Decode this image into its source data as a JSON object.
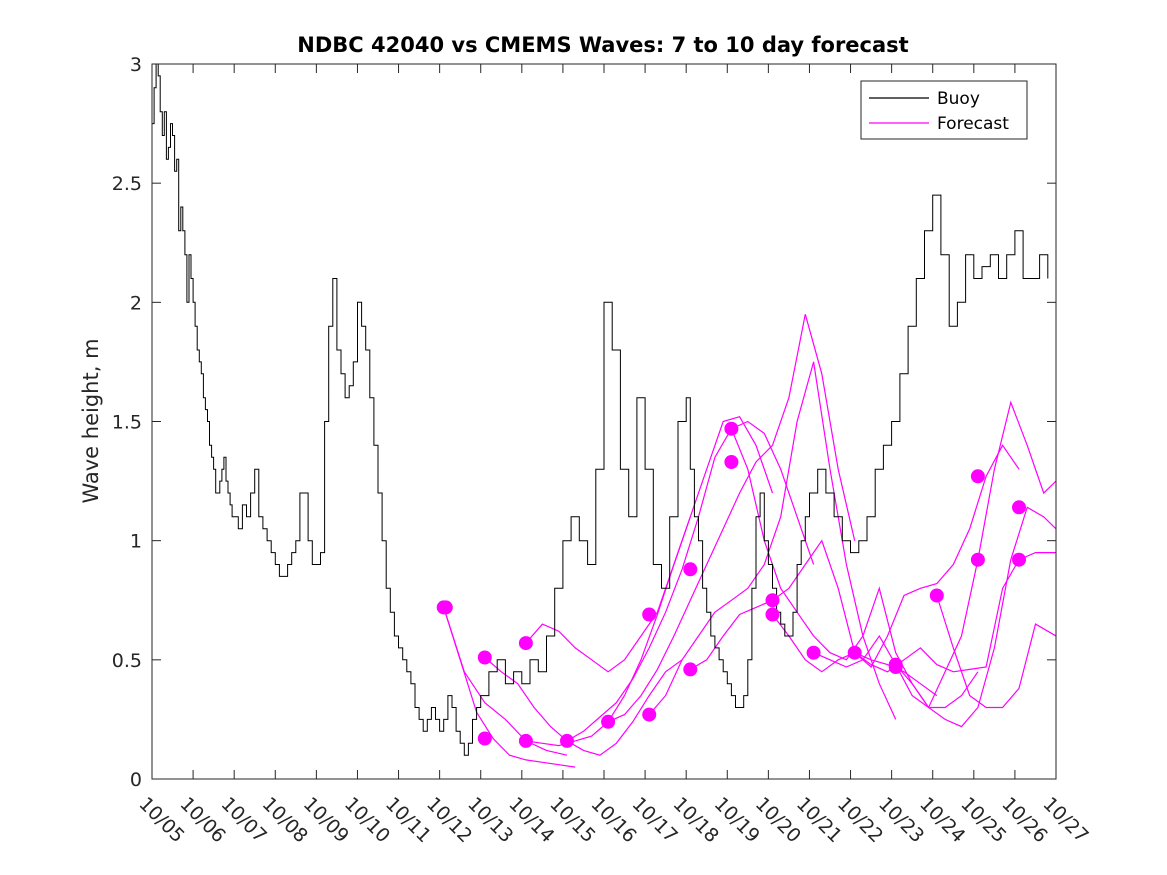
{
  "chart_data": {
    "type": "line",
    "title": "NDBC 42040 vs CMEMS Waves: 7 to 10 day forecast",
    "xlabel": "",
    "ylabel": "Wave height, m",
    "xlim": [
      0,
      22
    ],
    "ylim": [
      0,
      3
    ],
    "x_ticks": [
      0,
      1,
      2,
      3,
      4,
      5,
      6,
      7,
      8,
      9,
      10,
      11,
      12,
      13,
      14,
      15,
      16,
      17,
      18,
      19,
      20,
      21,
      22
    ],
    "x_tick_labels": [
      "10/05",
      "10/06",
      "10/07",
      "10/08",
      "10/09",
      "10/10",
      "10/11",
      "10/12",
      "10/13",
      "10/14",
      "10/15",
      "10/16",
      "10/17",
      "10/18",
      "10/19",
      "10/20",
      "10/21",
      "10/22",
      "10/23",
      "10/24",
      "10/25",
      "10/26",
      "10/27"
    ],
    "y_ticks": [
      0,
      0.5,
      1,
      1.5,
      2,
      2.5,
      3
    ],
    "y_tick_labels": [
      "0",
      "0.5",
      "1",
      "1.5",
      "2",
      "2.5",
      "3"
    ],
    "legend": {
      "placement": "top-right",
      "entries": [
        {
          "label": "Buoy",
          "color": "#000000"
        },
        {
          "label": "Forecast",
          "color": "#ff00ff"
        }
      ]
    },
    "buoy": {
      "name": "Buoy",
      "color": "#000000",
      "x": [
        0,
        0.05,
        0.1,
        0.15,
        0.2,
        0.25,
        0.3,
        0.35,
        0.4,
        0.45,
        0.5,
        0.55,
        0.6,
        0.65,
        0.7,
        0.75,
        0.8,
        0.85,
        0.9,
        0.95,
        1.0,
        1.05,
        1.1,
        1.15,
        1.2,
        1.25,
        1.3,
        1.35,
        1.4,
        1.45,
        1.5,
        1.55,
        1.6,
        1.65,
        1.7,
        1.75,
        1.8,
        1.85,
        1.9,
        1.95,
        2.0,
        2.1,
        2.2,
        2.3,
        2.4,
        2.5,
        2.6,
        2.7,
        2.8,
        2.9,
        3.0,
        3.1,
        3.2,
        3.3,
        3.4,
        3.5,
        3.6,
        3.7,
        3.8,
        3.9,
        4.0,
        4.1,
        4.2,
        4.3,
        4.4,
        4.5,
        4.6,
        4.7,
        4.8,
        4.9,
        5.0,
        5.1,
        5.2,
        5.3,
        5.4,
        5.5,
        5.6,
        5.7,
        5.8,
        5.9,
        6.0,
        6.1,
        6.2,
        6.3,
        6.4,
        6.5,
        6.6,
        6.7,
        6.8,
        6.9,
        7.0,
        7.1,
        7.2,
        7.3,
        7.4,
        7.5,
        7.6,
        7.7,
        7.8,
        7.9,
        8.0,
        8.2,
        8.4,
        8.6,
        8.8,
        9.0,
        9.2,
        9.4,
        9.6,
        9.8,
        10.0,
        10.2,
        10.4,
        10.6,
        10.8,
        11.0,
        11.2,
        11.4,
        11.6,
        11.8,
        12.0,
        12.2,
        12.4,
        12.6,
        12.8,
        13.0,
        13.1,
        13.2,
        13.3,
        13.4,
        13.5,
        13.6,
        13.7,
        13.8,
        13.9,
        14.0,
        14.1,
        14.2,
        14.3,
        14.4,
        14.5,
        14.6,
        14.7,
        14.8,
        14.9,
        15.0,
        15.1,
        15.2,
        15.3,
        15.4,
        15.5,
        15.6,
        15.7,
        15.8,
        15.9,
        16.0,
        16.2,
        16.4,
        16.6,
        16.8,
        17.0,
        17.2,
        17.4,
        17.6,
        17.8,
        18.0,
        18.2,
        18.4,
        18.6,
        18.8,
        19.0,
        19.2,
        19.4,
        19.6,
        19.8,
        20.0,
        20.2,
        20.4,
        20.6,
        20.8,
        21.0,
        21.2,
        21.4,
        21.6,
        21.8
      ],
      "y": [
        2.75,
        2.9,
        3.0,
        2.95,
        2.8,
        2.7,
        2.8,
        2.6,
        2.65,
        2.75,
        2.7,
        2.55,
        2.6,
        2.3,
        2.4,
        2.3,
        2.2,
        2.0,
        2.2,
        2.1,
        2.0,
        1.9,
        1.8,
        1.75,
        1.7,
        1.6,
        1.55,
        1.5,
        1.4,
        1.35,
        1.3,
        1.2,
        1.2,
        1.25,
        1.3,
        1.35,
        1.25,
        1.2,
        1.15,
        1.1,
        1.1,
        1.05,
        1.15,
        1.1,
        1.2,
        1.3,
        1.1,
        1.05,
        1.0,
        0.95,
        0.9,
        0.85,
        0.85,
        0.9,
        0.95,
        1.0,
        1.2,
        1.2,
        1.0,
        0.9,
        0.9,
        0.95,
        1.5,
        1.9,
        2.1,
        1.8,
        1.7,
        1.6,
        1.65,
        1.75,
        2.0,
        1.9,
        1.8,
        1.6,
        1.4,
        1.2,
        1.0,
        0.8,
        0.7,
        0.6,
        0.55,
        0.5,
        0.45,
        0.4,
        0.3,
        0.25,
        0.2,
        0.25,
        0.3,
        0.25,
        0.2,
        0.25,
        0.35,
        0.3,
        0.2,
        0.15,
        0.1,
        0.15,
        0.25,
        0.3,
        0.35,
        0.45,
        0.5,
        0.4,
        0.45,
        0.4,
        0.5,
        0.45,
        0.6,
        0.8,
        1.0,
        1.1,
        1.0,
        0.9,
        1.3,
        2.0,
        1.8,
        1.3,
        1.1,
        1.6,
        1.3,
        0.9,
        0.8,
        1.1,
        1.5,
        1.6,
        1.3,
        1.1,
        1.0,
        0.8,
        0.7,
        0.6,
        0.55,
        0.5,
        0.45,
        0.4,
        0.35,
        0.3,
        0.3,
        0.35,
        0.5,
        0.8,
        1.1,
        1.2,
        1.0,
        0.9,
        0.8,
        0.7,
        0.65,
        0.6,
        0.6,
        0.7,
        0.9,
        1.0,
        1.1,
        1.2,
        1.3,
        1.2,
        1.1,
        1.0,
        0.95,
        1.0,
        1.1,
        1.3,
        1.4,
        1.5,
        1.7,
        1.9,
        2.1,
        2.3,
        2.45,
        2.2,
        1.9,
        2.0,
        2.2,
        2.1,
        2.15,
        2.2,
        2.1,
        2.2,
        2.3,
        2.1,
        2.1,
        2.2,
        2.1
      ],
      "note": "Buoy trace is stepped/noisy; values are approximate readings."
    },
    "forecast_series": [
      {
        "name": "Forecast",
        "color": "#ff00ff",
        "x": [
          7.1,
          7.5,
          7.9,
          8.3,
          8.7,
          9.1,
          9.5,
          9.9,
          10.3
        ],
        "y": [
          0.72,
          0.5,
          0.28,
          0.17,
          0.1,
          0.08,
          0.07,
          0.06,
          0.05
        ]
      },
      {
        "name": "Forecast",
        "color": "#ff00ff",
        "x": [
          7.1,
          7.6,
          8.1,
          8.6,
          9.1,
          9.6,
          10.1
        ],
        "y": [
          0.72,
          0.45,
          0.32,
          0.25,
          0.16,
          0.12,
          0.1
        ]
      },
      {
        "name": "Forecast",
        "color": "#ff00ff",
        "x": [
          8.1,
          8.5,
          8.9,
          9.3,
          9.7,
          10.1,
          10.5,
          10.9,
          11.3,
          11.7,
          12.1,
          12.5,
          12.9
        ],
        "y": [
          0.51,
          0.45,
          0.4,
          0.3,
          0.22,
          0.16,
          0.12,
          0.1,
          0.15,
          0.24,
          0.35,
          0.45,
          0.5
        ]
      },
      {
        "name": "Forecast",
        "color": "#ff00ff",
        "x": [
          9.1,
          9.5,
          9.9,
          10.3,
          10.7,
          11.1,
          11.5,
          11.9,
          12.3,
          12.7,
          13.1
        ],
        "y": [
          0.57,
          0.65,
          0.62,
          0.55,
          0.5,
          0.45,
          0.5,
          0.6,
          0.7,
          0.9,
          1.1
        ]
      },
      {
        "name": "Forecast",
        "color": "#ff00ff",
        "x": [
          9.1,
          9.5,
          9.9,
          10.3,
          10.7,
          11.1,
          11.5,
          11.9,
          12.3,
          12.7,
          13.1,
          13.5,
          13.9,
          14.3,
          14.7,
          15.1
        ],
        "y": [
          0.16,
          0.15,
          0.14,
          0.16,
          0.18,
          0.24,
          0.35,
          0.5,
          0.69,
          0.9,
          1.1,
          1.3,
          1.5,
          1.52,
          1.4,
          1.2
        ]
      },
      {
        "name": "Forecast",
        "color": "#ff00ff",
        "x": [
          10.1,
          10.5,
          10.9,
          11.3,
          11.7,
          12.1,
          12.5,
          12.9,
          13.3,
          13.7,
          14.1,
          14.5,
          14.9,
          15.3,
          15.7,
          16.1
        ],
        "y": [
          0.16,
          0.2,
          0.26,
          0.32,
          0.42,
          0.55,
          0.7,
          0.88,
          1.1,
          1.35,
          1.47,
          1.5,
          1.45,
          1.3,
          1.1,
          0.9
        ]
      },
      {
        "name": "Forecast",
        "color": "#ff00ff",
        "x": [
          11.1,
          11.5,
          11.9,
          12.3,
          12.7,
          13.1,
          13.5,
          13.9,
          14.3,
          14.7,
          15.1,
          15.5,
          15.9,
          16.3,
          16.7,
          17.1
        ],
        "y": [
          0.24,
          0.27,
          0.35,
          0.46,
          0.6,
          0.75,
          0.9,
          1.05,
          1.2,
          1.33,
          1.4,
          1.6,
          1.95,
          1.7,
          1.3,
          1.0
        ]
      },
      {
        "name": "Forecast",
        "color": "#ff00ff",
        "x": [
          12.1,
          12.5,
          12.9,
          13.3,
          13.7,
          14.1,
          14.5,
          14.9,
          15.3,
          15.7,
          16.1,
          16.5,
          16.9,
          17.3,
          17.7,
          18.1
        ],
        "y": [
          0.27,
          0.35,
          0.5,
          0.6,
          0.7,
          0.75,
          0.8,
          0.9,
          1.1,
          1.5,
          1.75,
          1.3,
          0.9,
          0.6,
          0.4,
          0.25
        ]
      },
      {
        "name": "Forecast",
        "color": "#ff00ff",
        "x": [
          13.1,
          13.5,
          13.9,
          14.3,
          14.7,
          15.1,
          15.5,
          15.9,
          16.3,
          16.7,
          17.1,
          17.5,
          17.9,
          18.3,
          18.7,
          19.1
        ],
        "y": [
          0.46,
          0.5,
          0.6,
          0.69,
          0.72,
          0.75,
          0.8,
          0.9,
          1.0,
          0.8,
          0.53,
          0.5,
          0.48,
          0.45,
          0.4,
          0.35
        ]
      },
      {
        "name": "Forecast",
        "color": "#ff00ff",
        "x": [
          14.1,
          14.5,
          14.9,
          15.3,
          15.7,
          16.1,
          16.5,
          16.9,
          17.3,
          17.7,
          18.1,
          18.5,
          18.9,
          19.3,
          19.7,
          20.1
        ],
        "y": [
          1.47,
          1.3,
          1.0,
          0.8,
          0.7,
          0.6,
          0.53,
          0.5,
          0.6,
          0.8,
          0.53,
          0.4,
          0.3,
          0.3,
          0.35,
          0.45
        ]
      },
      {
        "name": "Forecast",
        "color": "#ff00ff",
        "x": [
          15.1,
          15.5,
          15.9,
          16.3,
          16.7,
          17.1,
          17.5,
          17.9,
          18.3,
          18.7,
          19.1,
          19.5,
          19.9,
          20.3,
          20.7,
          21.1
        ],
        "y": [
          0.69,
          0.6,
          0.5,
          0.45,
          0.5,
          0.53,
          0.47,
          0.6,
          0.77,
          0.8,
          0.82,
          0.9,
          1.05,
          1.27,
          1.4,
          1.3
        ]
      },
      {
        "name": "Forecast",
        "color": "#ff00ff",
        "x": [
          16.1,
          16.5,
          16.9,
          17.3,
          17.7,
          18.1,
          18.5,
          18.9,
          19.3,
          19.7,
          20.1,
          20.5,
          20.9,
          21.3,
          21.7,
          22.0
        ],
        "y": [
          0.53,
          0.5,
          0.47,
          0.5,
          0.6,
          0.48,
          0.35,
          0.3,
          0.45,
          0.6,
          0.92,
          1.3,
          1.58,
          1.4,
          1.2,
          1.25
        ]
      },
      {
        "name": "Forecast",
        "color": "#ff00ff",
        "x": [
          17.1,
          17.5,
          17.9,
          18.3,
          18.7,
          19.1,
          19.5,
          19.9,
          20.3,
          20.7,
          21.1,
          21.5,
          22.0
        ],
        "y": [
          0.53,
          0.48,
          0.45,
          0.5,
          0.55,
          0.48,
          0.45,
          0.46,
          0.47,
          0.8,
          0.92,
          0.95,
          0.95
        ]
      },
      {
        "name": "Forecast",
        "color": "#ff00ff",
        "x": [
          18.1,
          18.5,
          18.9,
          19.3,
          19.7,
          20.1,
          20.5,
          20.9,
          21.3,
          21.7,
          22.0
        ],
        "y": [
          0.48,
          0.4,
          0.3,
          0.25,
          0.22,
          0.3,
          0.55,
          0.92,
          1.14,
          1.1,
          1.05
        ]
      },
      {
        "name": "Forecast",
        "color": "#ff00ff",
        "x": [
          19.1,
          19.5,
          19.9,
          20.3,
          20.7,
          21.1,
          21.5,
          22.0
        ],
        "y": [
          0.77,
          0.55,
          0.35,
          0.3,
          0.3,
          0.38,
          0.65,
          0.6
        ]
      }
    ],
    "forecast_markers": {
      "name": "Forecast start points",
      "color": "#ff00ff",
      "x": [
        7.1,
        7.15,
        8.1,
        8.1,
        9.1,
        9.1,
        10.1,
        11.1,
        12.1,
        12.1,
        13.1,
        13.1,
        14.1,
        14.1,
        15.1,
        15.1,
        16.1,
        17.1,
        18.1,
        18.1,
        19.1,
        20.1,
        20.1,
        21.1,
        21.1
      ],
      "y": [
        0.72,
        0.72,
        0.17,
        0.51,
        0.57,
        0.16,
        0.16,
        0.24,
        0.69,
        0.27,
        0.88,
        0.46,
        1.47,
        1.33,
        0.75,
        0.69,
        0.53,
        0.53,
        0.47,
        0.48,
        0.77,
        1.27,
        0.92,
        1.14,
        0.92
      ]
    }
  }
}
